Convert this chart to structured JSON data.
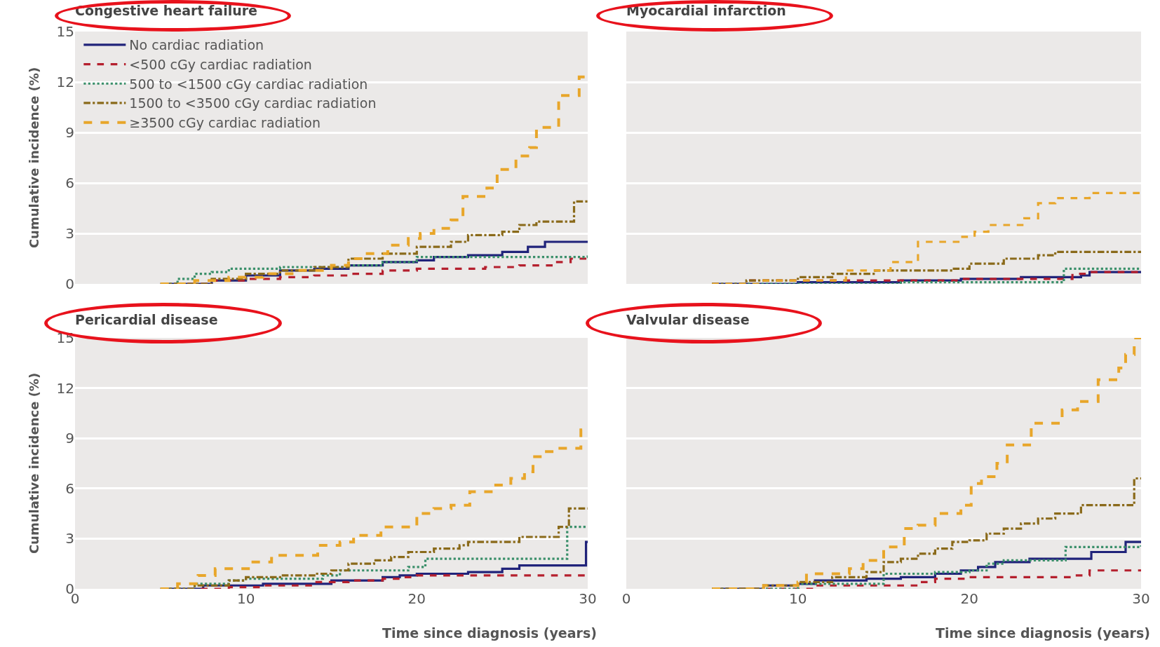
{
  "chart_data": [
    {
      "type": "step",
      "title": "Congestive heart failure",
      "ylabel": "Cumulative incidence (%)",
      "xlim": [
        0,
        30
      ],
      "xticks": [
        0,
        10,
        20,
        30
      ],
      "ylim": [
        0,
        15
      ],
      "yticks": [
        0,
        3,
        6,
        9,
        12,
        15
      ],
      "tick_labels": "y",
      "grid": "y",
      "legend": "top left",
      "series": [
        {
          "name": "No cardiac radiation",
          "color": "#20237a",
          "line_style": "solid",
          "x": [
            5,
            8,
            10,
            12,
            14,
            16,
            18,
            20,
            21,
            23,
            25,
            26.5,
            27.5,
            30
          ],
          "values": [
            0,
            0.2,
            0.5,
            0.8,
            0.9,
            1.1,
            1.3,
            1.4,
            1.6,
            1.7,
            1.9,
            2.2,
            2.5,
            2.5
          ]
        },
        {
          "name": "<500 cGy cardiac radiation",
          "color": "#b5202e",
          "line_style": "dashed",
          "x": [
            5,
            8,
            10,
            12,
            14,
            16,
            18,
            20,
            24,
            26,
            28,
            29,
            30
          ],
          "values": [
            0,
            0.2,
            0.3,
            0.4,
            0.5,
            0.6,
            0.8,
            0.9,
            1.0,
            1.1,
            1.3,
            1.5,
            1.5
          ]
        },
        {
          "name": "500 to <1500 cGy cardiac radiation",
          "color": "#3a8f6a",
          "line_style": "dotted",
          "x": [
            5,
            6,
            7,
            8,
            9,
            12,
            16,
            18,
            20,
            30
          ],
          "values": [
            0,
            0.3,
            0.6,
            0.7,
            0.9,
            1.0,
            1.1,
            1.3,
            1.6,
            1.7
          ]
        },
        {
          "name": "1500 to <3500 cGy cardiac radiation",
          "color": "#8a6a1a",
          "line_style": "dashdot",
          "x": [
            5,
            8,
            10,
            12,
            14,
            16,
            18,
            20,
            22,
            23,
            25,
            26,
            27,
            29.2,
            30
          ],
          "values": [
            0,
            0.3,
            0.6,
            0.8,
            1.0,
            1.5,
            1.8,
            2.2,
            2.5,
            2.9,
            3.1,
            3.5,
            3.7,
            4.9,
            4.9
          ]
        },
        {
          "name": "≥3500 cGy cardiac radiation",
          "color": "#e8a62a",
          "line_style": "dashed",
          "x": [
            5,
            7,
            9,
            11,
            13,
            15,
            16,
            17,
            18.3,
            19.5,
            20.2,
            21,
            22,
            22.7,
            24.1,
            24.7,
            25.8,
            26.6,
            27,
            28.3,
            29.5,
            30
          ],
          "values": [
            0,
            0.2,
            0.4,
            0.6,
            0.8,
            1.1,
            1.5,
            1.8,
            2.3,
            2.7,
            3.0,
            3.3,
            3.8,
            5.2,
            5.7,
            6.8,
            7.6,
            8.1,
            9.3,
            11.2,
            12.3,
            12.3
          ]
        }
      ]
    },
    {
      "type": "step",
      "title": "Myocardial infarction",
      "xlim": [
        0,
        30
      ],
      "xticks": [
        0,
        10,
        20,
        30
      ],
      "ylim": [
        0,
        15
      ],
      "yticks": [
        0,
        3,
        6,
        9,
        12,
        15
      ],
      "tick_labels": false,
      "grid": "y",
      "series": [
        {
          "color": "#20237a",
          "line_style": "solid",
          "x": [
            5,
            10,
            16,
            19.5,
            23,
            26.5,
            27,
            30
          ],
          "values": [
            0,
            0.1,
            0.2,
            0.3,
            0.4,
            0.5,
            0.7,
            0.7
          ]
        },
        {
          "color": "#b5202e",
          "line_style": "dashed",
          "x": [
            5,
            7,
            16,
            19.5,
            26,
            27,
            30
          ],
          "values": [
            0,
            0.2,
            0.2,
            0.3,
            0.6,
            0.7,
            0.7
          ]
        },
        {
          "color": "#3a8f6a",
          "line_style": "dotted",
          "x": [
            5,
            16,
            25.5,
            30
          ],
          "values": [
            0,
            0.1,
            0.9,
            0.9
          ]
        },
        {
          "color": "#8a6a1a",
          "line_style": "dashdot",
          "x": [
            5,
            7,
            10,
            12,
            14.5,
            19,
            20,
            22,
            24,
            25,
            30
          ],
          "values": [
            0,
            0.2,
            0.4,
            0.6,
            0.8,
            0.9,
            1.2,
            1.5,
            1.7,
            1.9,
            1.9
          ]
        },
        {
          "color": "#e8a62a",
          "line_style": "dashed",
          "x": [
            5,
            8,
            12.8,
            15.4,
            17,
            19.5,
            20.3,
            21.1,
            23.2,
            24,
            25,
            27,
            30
          ],
          "values": [
            0,
            0.2,
            0.8,
            1.3,
            2.5,
            2.8,
            3.1,
            3.5,
            3.9,
            4.8,
            5.1,
            5.4,
            5.4
          ]
        }
      ]
    },
    {
      "type": "step",
      "title": "Pericardial disease",
      "ylabel": "Cumulative incidence (%)",
      "xlabel": "Time since diagnosis (years)",
      "xlim": [
        0,
        30
      ],
      "xticks": [
        0,
        10,
        20,
        30
      ],
      "ylim": [
        0,
        15
      ],
      "yticks": [
        0,
        3,
        6,
        9,
        12,
        15
      ],
      "grid": "y",
      "series": [
        {
          "color": "#20237a",
          "line_style": "solid",
          "x": [
            5,
            7.5,
            11,
            15,
            18,
            19,
            20,
            23,
            25,
            26,
            29.9,
            30
          ],
          "values": [
            0,
            0.2,
            0.3,
            0.5,
            0.7,
            0.8,
            0.9,
            1.0,
            1.2,
            1.4,
            2.8,
            2.8
          ]
        },
        {
          "color": "#b5202e",
          "line_style": "dashed",
          "x": [
            5,
            9,
            11,
            14,
            16,
            18,
            19,
            20,
            30
          ],
          "values": [
            0,
            0.1,
            0.2,
            0.4,
            0.5,
            0.6,
            0.7,
            0.8,
            0.8
          ]
        },
        {
          "color": "#3a8f6a",
          "line_style": "dotted",
          "x": [
            5,
            7,
            9,
            10,
            14.5,
            15.5,
            19.5,
            20.5,
            28.8,
            30
          ],
          "values": [
            0,
            0.3,
            0.5,
            0.6,
            0.8,
            1.1,
            1.3,
            1.8,
            3.7,
            3.7
          ]
        },
        {
          "color": "#8a6a1a",
          "line_style": "dashdot",
          "x": [
            5,
            7,
            9,
            10,
            12,
            14,
            15,
            16,
            17.5,
            18.5,
            19.5,
            21,
            22.5,
            23,
            26,
            28.3,
            28.9,
            30
          ],
          "values": [
            0,
            0.2,
            0.5,
            0.7,
            0.8,
            0.9,
            1.1,
            1.5,
            1.7,
            1.9,
            2.2,
            2.4,
            2.6,
            2.8,
            3.1,
            3.7,
            4.8,
            4.8
          ]
        },
        {
          "color": "#e8a62a",
          "line_style": "dashed",
          "x": [
            5,
            6,
            7.2,
            8.2,
            10.3,
            11.5,
            14.2,
            15.5,
            16.3,
            17.9,
            20,
            21,
            22,
            23.1,
            24.5,
            25.5,
            26.3,
            26.8,
            27.5,
            28,
            29.6,
            30
          ],
          "values": [
            0,
            0.3,
            0.8,
            1.2,
            1.6,
            2.0,
            2.6,
            2.8,
            3.2,
            3.7,
            4.5,
            4.8,
            5.0,
            5.8,
            6.2,
            6.6,
            7.0,
            7.9,
            8.2,
            8.4,
            9.5,
            9.5
          ]
        }
      ]
    },
    {
      "type": "step",
      "title": "Valvular disease",
      "xlabel": "Time since diagnosis (years)",
      "xlim": [
        0,
        30
      ],
      "xticks": [
        0,
        10,
        20,
        30
      ],
      "ylim": [
        0,
        15
      ],
      "yticks": [
        0,
        3,
        6,
        9,
        12,
        15
      ],
      "tick_labels": "x",
      "grid": "y",
      "series": [
        {
          "color": "#20237a",
          "line_style": "solid",
          "x": [
            5,
            8,
            10,
            11,
            14,
            16,
            18,
            19.5,
            20.5,
            21.5,
            23.5,
            27.1,
            29.1,
            30
          ],
          "values": [
            0,
            0.2,
            0.3,
            0.5,
            0.6,
            0.7,
            0.9,
            1.1,
            1.3,
            1.6,
            1.8,
            2.2,
            2.8,
            2.8
          ]
        },
        {
          "color": "#b5202e",
          "line_style": "dashed",
          "x": [
            5,
            11,
            17,
            18,
            20,
            26,
            27,
            30
          ],
          "values": [
            0,
            0.2,
            0.4,
            0.6,
            0.7,
            0.8,
            1.1,
            1.1
          ]
        },
        {
          "color": "#3a8f6a",
          "line_style": "dotted",
          "x": [
            5,
            10,
            15,
            18,
            20,
            21,
            22,
            25.6,
            30
          ],
          "values": [
            0,
            0.3,
            0.9,
            1.0,
            1.1,
            1.5,
            1.7,
            2.5,
            2.6
          ]
        },
        {
          "color": "#8a6a1a",
          "line_style": "dashdot",
          "x": [
            5,
            8,
            10,
            12,
            14,
            15,
            16,
            17,
            18,
            19,
            20,
            21,
            22,
            23,
            24,
            25,
            26.5,
            29.6,
            30
          ],
          "values": [
            0,
            0.2,
            0.4,
            0.7,
            1.0,
            1.6,
            1.8,
            2.1,
            2.4,
            2.8,
            2.9,
            3.3,
            3.6,
            3.9,
            4.2,
            4.5,
            5.0,
            6.6,
            6.6
          ]
        },
        {
          "color": "#e8a62a",
          "line_style": "dashed",
          "x": [
            5,
            8,
            10,
            10.5,
            13,
            13.8,
            15,
            16.2,
            17,
            18,
            19.5,
            20.1,
            20.7,
            21.6,
            22.2,
            23.6,
            25.4,
            26.3,
            27.5,
            28.7,
            29.1,
            29.6,
            30
          ],
          "values": [
            0,
            0.2,
            0.4,
            0.9,
            1.2,
            1.7,
            2.5,
            3.6,
            3.8,
            4.5,
            5.0,
            6.3,
            6.7,
            7.5,
            8.6,
            9.9,
            10.7,
            11.2,
            12.5,
            13.2,
            14.0,
            15.0,
            15.0
          ]
        }
      ]
    }
  ]
}
